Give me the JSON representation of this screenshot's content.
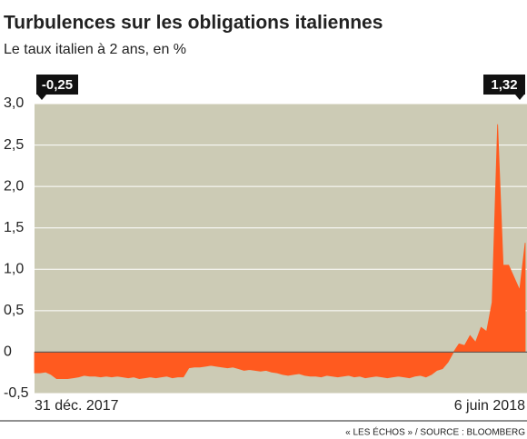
{
  "chart_data": {
    "type": "area",
    "title": "Turbulences sur les obligations italiennes",
    "subtitle": "Le taux italien à 2 ans, en %",
    "source": "« LES ÉCHOS » / SOURCE : BLOOMBERG",
    "color": "#ff5a1f",
    "background": "#cccbb5",
    "grid": true,
    "categories": [
      "31 déc. 2017",
      null,
      null,
      null,
      null,
      null,
      null,
      null,
      null,
      null,
      null,
      null,
      null,
      null,
      null,
      null,
      null,
      null,
      null,
      null,
      null,
      null,
      null,
      null,
      null,
      null,
      null,
      null,
      null,
      null,
      null,
      null,
      null,
      null,
      null,
      null,
      null,
      null,
      null,
      null,
      null,
      null,
      null,
      null,
      null,
      null,
      null,
      null,
      null,
      null,
      null,
      null,
      null,
      null,
      null,
      null,
      null,
      null,
      null,
      null,
      null,
      null,
      null,
      null,
      null,
      null,
      null,
      null,
      null,
      null,
      null,
      null,
      null,
      null,
      null,
      null,
      null,
      null,
      null,
      null,
      null,
      null,
      null,
      null,
      null,
      null,
      null,
      null,
      null,
      "6 juin 2018"
    ],
    "values": [
      -0.25,
      -0.25,
      -0.24,
      -0.27,
      -0.32,
      -0.32,
      -0.32,
      -0.31,
      -0.3,
      -0.28,
      -0.29,
      -0.29,
      -0.3,
      -0.29,
      -0.3,
      -0.29,
      -0.3,
      -0.31,
      -0.3,
      -0.32,
      -0.31,
      -0.3,
      -0.31,
      -0.3,
      -0.29,
      -0.31,
      -0.3,
      -0.3,
      -0.19,
      -0.18,
      -0.18,
      -0.17,
      -0.16,
      -0.17,
      -0.18,
      -0.19,
      -0.18,
      -0.2,
      -0.22,
      -0.21,
      -0.22,
      -0.23,
      -0.22,
      -0.24,
      -0.25,
      -0.27,
      -0.28,
      -0.27,
      -0.26,
      -0.28,
      -0.29,
      -0.29,
      -0.3,
      -0.28,
      -0.29,
      -0.3,
      -0.29,
      -0.28,
      -0.3,
      -0.29,
      -0.31,
      -0.3,
      -0.29,
      -0.3,
      -0.31,
      -0.3,
      -0.29,
      -0.3,
      -0.31,
      -0.29,
      -0.28,
      -0.3,
      -0.27,
      -0.22,
      -0.2,
      -0.12,
      0,
      0.1,
      0.08,
      0.2,
      0.12,
      0.3,
      0.25,
      0.6,
      2.75,
      1.05,
      1.05,
      0.9,
      0.75,
      1.32
    ],
    "ylim": [
      -0.5,
      3.0
    ],
    "yticks": [
      {
        "value": -0.5,
        "label": "-0,5"
      },
      0,
      {
        "value": 0.5,
        "label": "0,5"
      },
      {
        "value": 1.0,
        "label": "1,0"
      },
      {
        "value": 1.5,
        "label": "1,5"
      },
      {
        "value": 2.0,
        "label": "2,0"
      },
      {
        "value": 2.5,
        "label": "2,5"
      },
      {
        "value": 3.0,
        "label": "3,0"
      }
    ],
    "annotations": [
      {
        "value": -0.25,
        "label": "-0,25"
      },
      {
        "value": 1.32,
        "label": "1,32"
      }
    ]
  }
}
